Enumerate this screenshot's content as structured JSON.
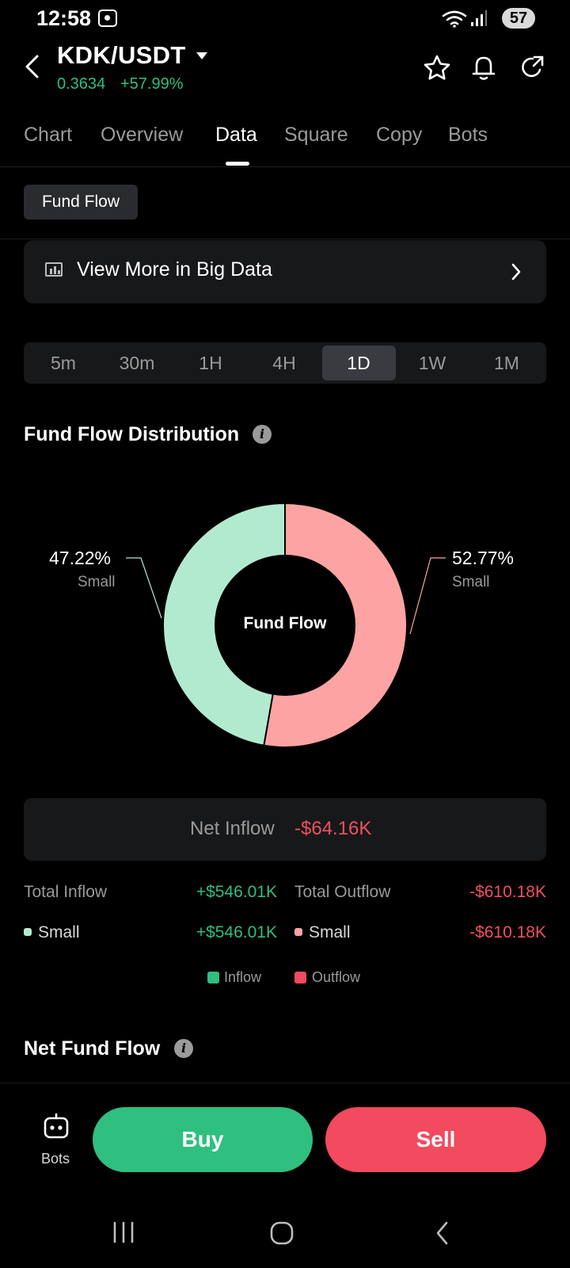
{
  "status_bar": {
    "time": "12:58",
    "battery": "57"
  },
  "header": {
    "pair": "KDK/USDT",
    "price": "0.3634",
    "change": "+57.99%",
    "icons": [
      "back-arrow-icon",
      "star-icon",
      "bell-icon",
      "share-icon"
    ]
  },
  "tabs": [
    {
      "label": "Chart"
    },
    {
      "label": "Overview"
    },
    {
      "label": "Data",
      "active": true
    },
    {
      "label": "Square"
    },
    {
      "label": "Copy"
    },
    {
      "label": "Bots"
    }
  ],
  "chip": {
    "label": "Fund Flow"
  },
  "big_data": {
    "label": "View More in Big Data"
  },
  "timeframes": {
    "options": [
      "5m",
      "30m",
      "1H",
      "4H",
      "1D",
      "1W",
      "1M"
    ],
    "selected": "1D"
  },
  "distribution": {
    "title": "Fund Flow Distribution",
    "center_label": "Fund Flow",
    "left_pct": "47.22%",
    "left_label": "Small",
    "right_pct": "52.77%",
    "right_label": "Small"
  },
  "chart_data": {
    "type": "pie",
    "categories": [
      "Inflow Small",
      "Outflow Small"
    ],
    "values": [
      47.22,
      52.77
    ],
    "colors": [
      "#b2ead0",
      "#fda3a3"
    ],
    "title": "Fund Flow Distribution"
  },
  "net_inflow": {
    "label": "Net Inflow",
    "value": "-$64.16K"
  },
  "totals": {
    "inflow_label": "Total Inflow",
    "inflow_value": "+$546.01K",
    "outflow_label": "Total Outflow",
    "outflow_value": "-$610.18K",
    "small_in_label": "Small",
    "small_in_value": "+$546.01K",
    "small_out_label": "Small",
    "small_out_value": "-$610.18K"
  },
  "legend": {
    "inflow": "Inflow",
    "outflow": "Outflow"
  },
  "net_fund_flow": {
    "title": "Net Fund Flow"
  },
  "bottom_bar": {
    "bots_label": "Bots",
    "buy_label": "Buy",
    "sell_label": "Sell"
  },
  "colors": {
    "green": "#2fbf7f",
    "red": "#f24a5e",
    "inflow_slice": "#b2ead0",
    "outflow_slice": "#fda3a3"
  }
}
